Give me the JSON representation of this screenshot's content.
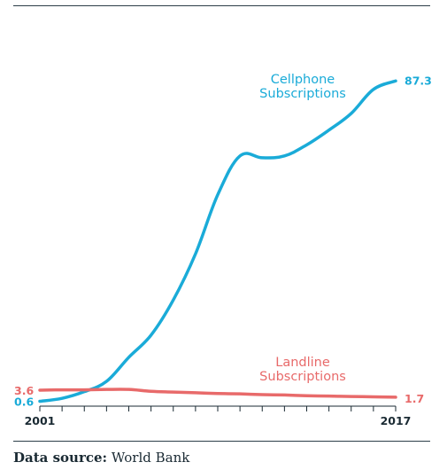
{
  "chart_data": {
    "type": "line",
    "x": [
      2001,
      2002,
      2003,
      2004,
      2005,
      2006,
      2007,
      2008,
      2009,
      2010,
      2011,
      2012,
      2013,
      2014,
      2015,
      2016,
      2017
    ],
    "x_tick_labels": [
      "2001",
      "2017"
    ],
    "xlim": [
      2001,
      2017
    ],
    "ylim": [
      0,
      90
    ],
    "grid": false,
    "legend": "inline",
    "series": [
      {
        "name": "Cellphone\nSubscriptions",
        "color": "#1aabd8",
        "values": [
          0.6,
          1.4,
          3.2,
          6.0,
          12.5,
          18.5,
          28.0,
          40.5,
          56.5,
          67.0,
          66.5,
          67.0,
          70.0,
          74.0,
          78.5,
          85.0,
          87.3
        ],
        "start_label": "0.6",
        "end_label": "87.3"
      },
      {
        "name": "Landline\nSubscriptions",
        "color": "#e86a6a",
        "values": [
          3.6,
          3.7,
          3.7,
          3.8,
          3.8,
          3.3,
          3.1,
          2.9,
          2.7,
          2.6,
          2.4,
          2.3,
          2.1,
          2.0,
          1.9,
          1.8,
          1.7
        ],
        "start_label": "3.6",
        "end_label": "1.7"
      }
    ]
  },
  "footer": {
    "label": "Data source:",
    "source": "World Bank"
  }
}
